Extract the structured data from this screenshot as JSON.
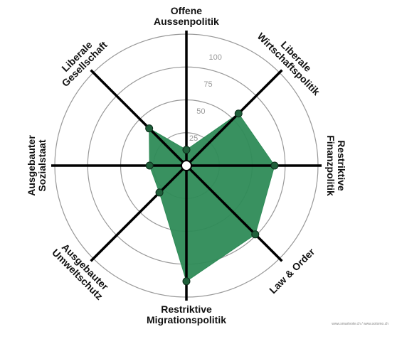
{
  "chart_data": {
    "type": "radar",
    "categories": [
      "Offene\nAussenpolitik",
      "Liberale\nWirtschaftspolitik",
      "Restriktive\nFinanzpolitik",
      "Law & Order",
      "Restriktive\nMigrationspolitik",
      "Ausgebauter\nUmweltschutz",
      "Ausgebauter\nSozialstaat",
      "Liberale\nGesellschaft"
    ],
    "values": [
      12,
      56,
      67,
      74,
      88,
      29,
      28,
      40
    ],
    "color": "#2e8b57",
    "ylim": [
      0,
      100
    ],
    "yticks": [
      25,
      50,
      75,
      100
    ],
    "credit": "www.smartvote.ch / www.sotomo.ch"
  }
}
